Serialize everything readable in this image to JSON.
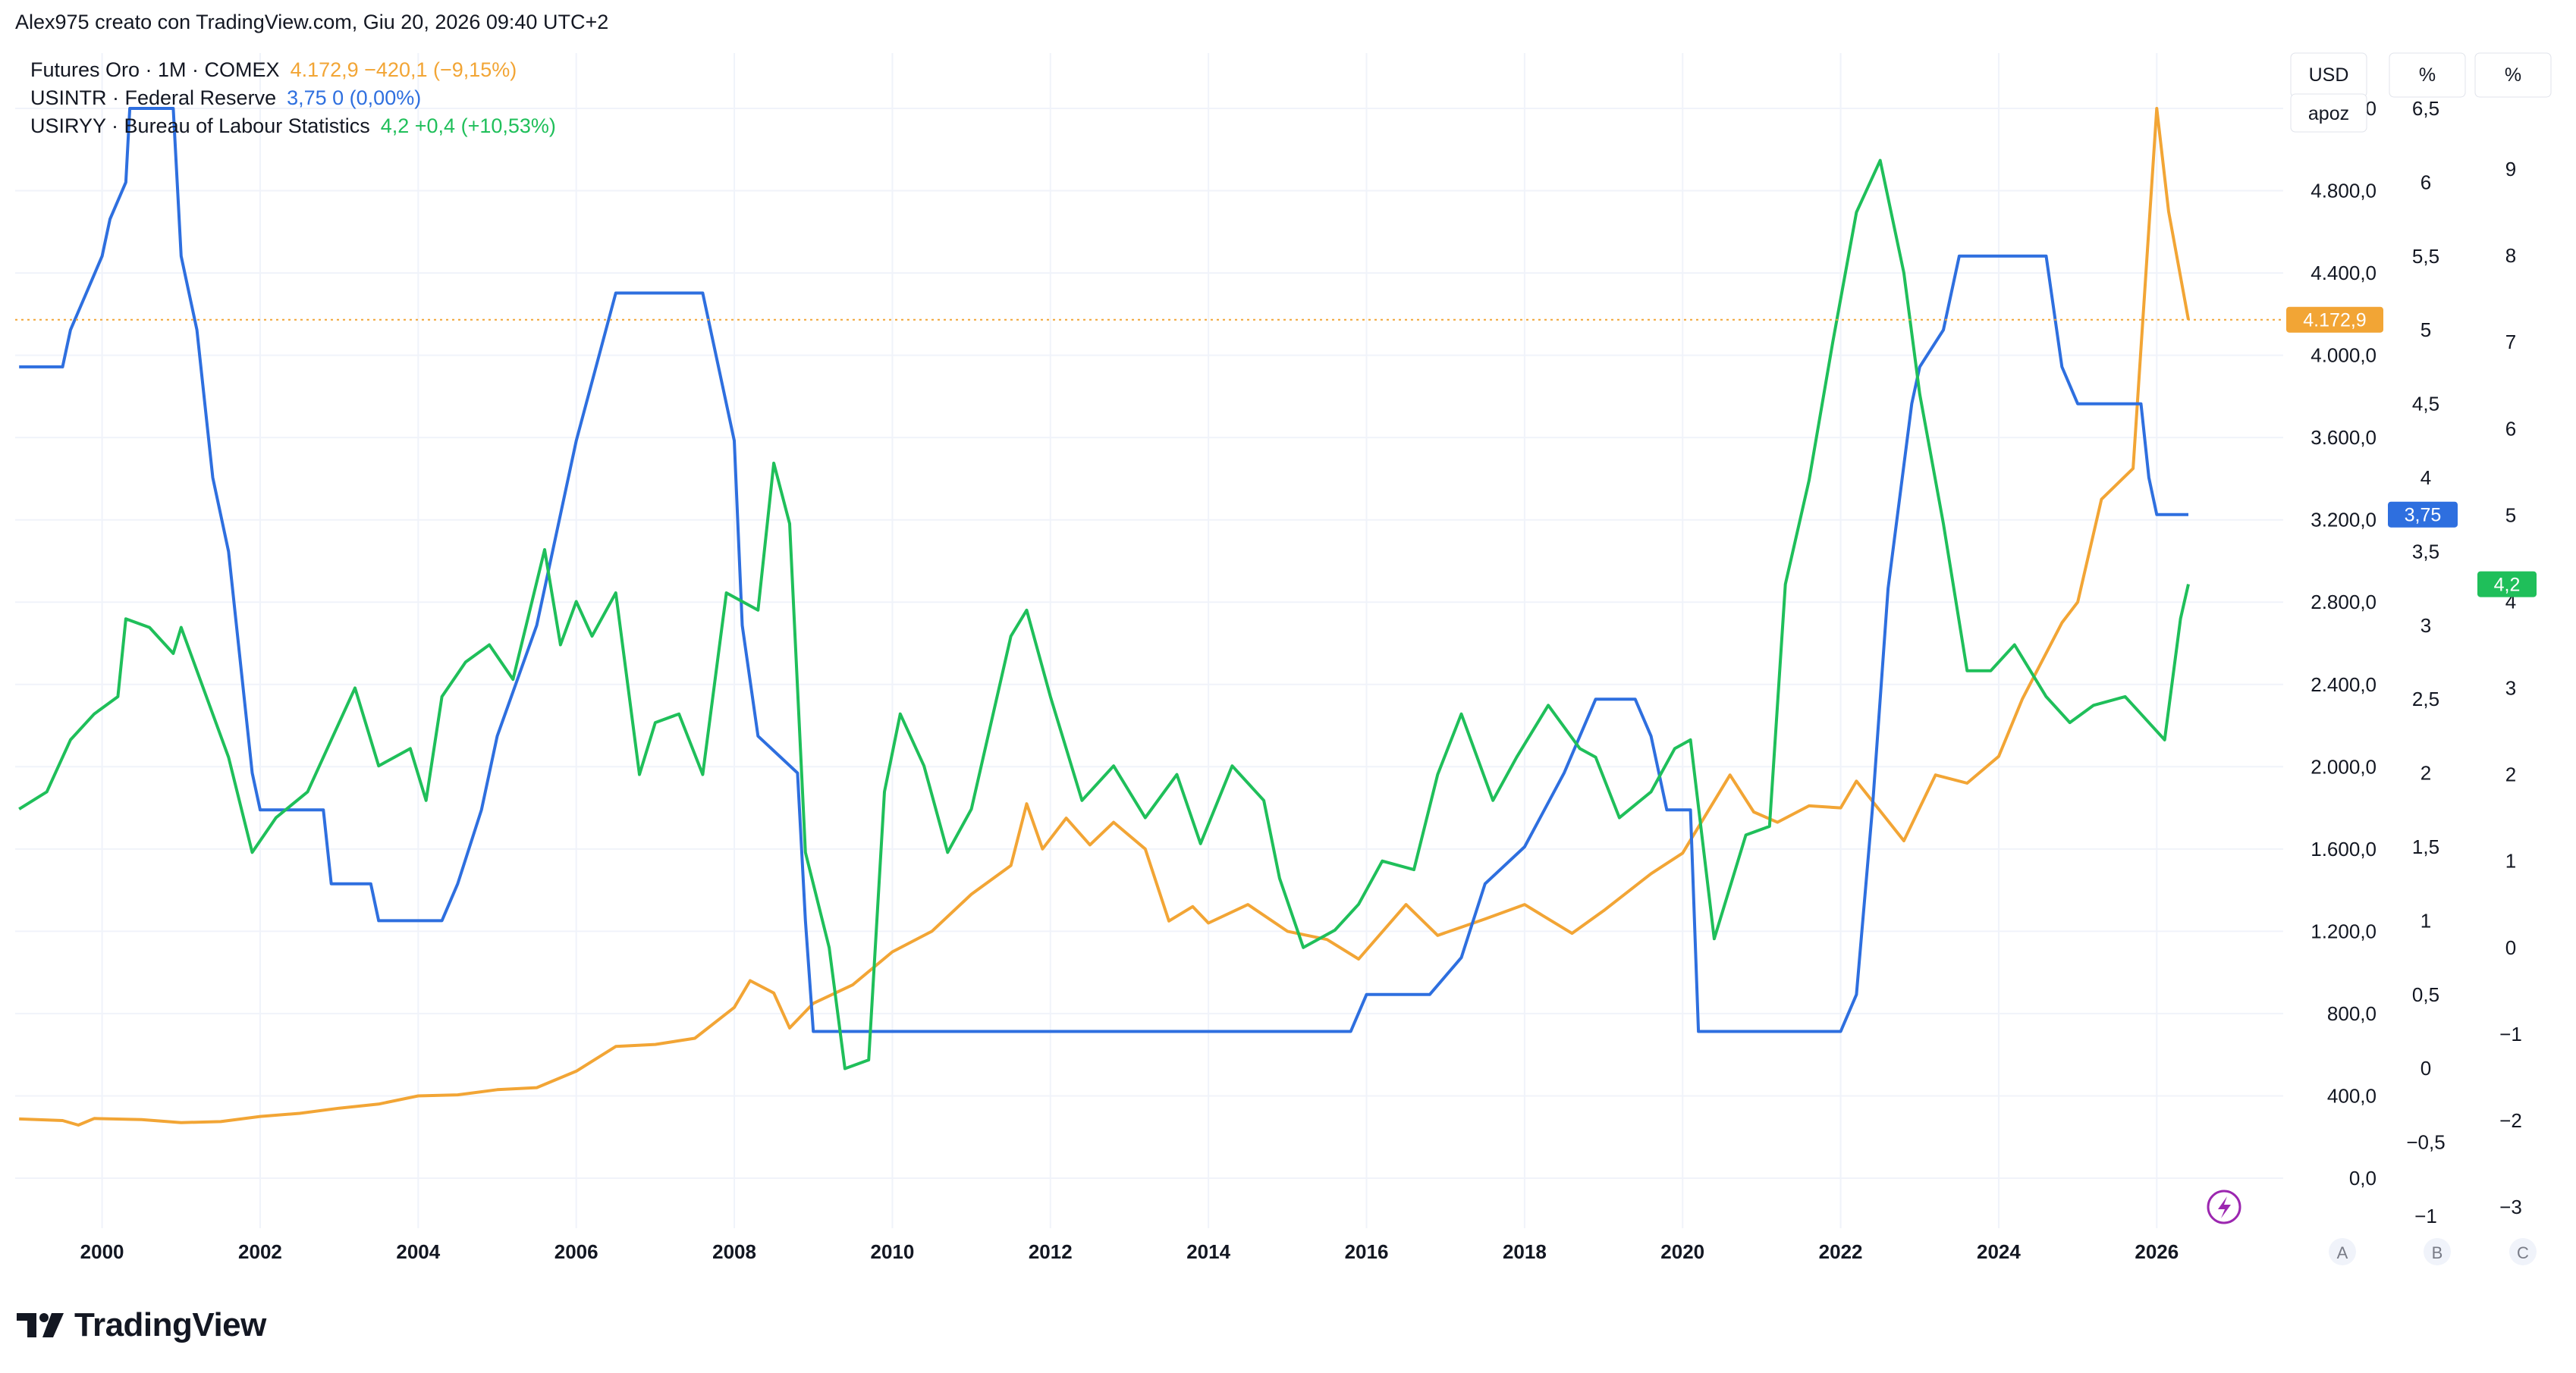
{
  "header": {
    "attribution": "Alex975 creato con TradingView.com, Giu 20, 2026 09:40 UTC+2"
  },
  "legend": [
    {
      "name": "Futures Oro · 1M · COMEX",
      "value": "4.172,9  −420,1 (−9,15%)",
      "color": "#f2a535"
    },
    {
      "name": "USINTR · Federal Reserve",
      "value": "3,75  0 (0,00%)",
      "color": "#2e6fdf"
    },
    {
      "name": "USIRYY · Bureau of Labour Statistics",
      "value": "4,2  +0,4 (+10,53%)",
      "color": "#1fbf5a"
    }
  ],
  "axis_headers": {
    "a_unit": "USD",
    "a_mode": "apoz",
    "b_unit": "%",
    "c_unit": "%"
  },
  "axis_footers": [
    "A",
    "B",
    "C"
  ],
  "brand": "TradingView",
  "colors": {
    "gold": "#f2a535",
    "rate": "#2e6fdf",
    "cpi": "#1fbf5a",
    "grid": "#f0f3fa",
    "axis_text": "#131722"
  },
  "chart_data": {
    "type": "line",
    "x_ticks": [
      2000,
      2002,
      2004,
      2006,
      2008,
      2010,
      2012,
      2014,
      2016,
      2018,
      2020,
      2022,
      2024,
      2026
    ],
    "x_range": [
      1998.9,
      2027.6
    ],
    "axes": {
      "A": {
        "ticks": [
          "0,0",
          "400,0",
          "800,0",
          "1.200,0",
          "1.600,0",
          "2.000,0",
          "2.400,0",
          "2.800,0",
          "3.200,0",
          "3.600,0",
          "4.000,0",
          "4.400,0",
          "4.800,0",
          "5.200,0"
        ],
        "range": [
          0,
          5200
        ]
      },
      "B": {
        "ticks": [
          "−1",
          "−0,5",
          "0",
          "0,5",
          "1",
          "1,5",
          "2",
          "2,5",
          "3",
          "3,5",
          "4",
          "4,5",
          "5",
          "5,5",
          "6",
          "6,5"
        ],
        "range": [
          -1,
          6.5
        ]
      },
      "C": {
        "ticks": [
          "−3",
          "−2",
          "−1",
          "0",
          "1",
          "2",
          "3",
          "4",
          "5",
          "6",
          "7",
          "8",
          "9"
        ],
        "range": [
          -3,
          9
        ]
      }
    },
    "last_labels": {
      "gold": "4.172,9",
      "rate": "3,75",
      "cpi": "4,2"
    },
    "series": [
      {
        "name": "Futures Oro · 1M · COMEX",
        "axis": "A",
        "points": [
          [
            1998.95,
            288
          ],
          [
            1999.5,
            280
          ],
          [
            1999.7,
            258
          ],
          [
            1999.9,
            290
          ],
          [
            2000.5,
            285
          ],
          [
            2001.0,
            270
          ],
          [
            2001.5,
            275
          ],
          [
            2002.0,
            300
          ],
          [
            2002.5,
            315
          ],
          [
            2003.0,
            340
          ],
          [
            2003.5,
            360
          ],
          [
            2004.0,
            400
          ],
          [
            2004.5,
            405
          ],
          [
            2005.0,
            430
          ],
          [
            2005.5,
            440
          ],
          [
            2006.0,
            520
          ],
          [
            2006.5,
            640
          ],
          [
            2007.0,
            650
          ],
          [
            2007.5,
            680
          ],
          [
            2008.0,
            830
          ],
          [
            2008.2,
            960
          ],
          [
            2008.5,
            900
          ],
          [
            2008.7,
            730
          ],
          [
            2009.0,
            850
          ],
          [
            2009.5,
            940
          ],
          [
            2010.0,
            1100
          ],
          [
            2010.5,
            1200
          ],
          [
            2011.0,
            1380
          ],
          [
            2011.5,
            1520
          ],
          [
            2011.7,
            1820
          ],
          [
            2011.9,
            1600
          ],
          [
            2012.2,
            1750
          ],
          [
            2012.5,
            1620
          ],
          [
            2012.8,
            1730
          ],
          [
            2013.2,
            1600
          ],
          [
            2013.5,
            1250
          ],
          [
            2013.8,
            1320
          ],
          [
            2014.0,
            1240
          ],
          [
            2014.5,
            1330
          ],
          [
            2015.0,
            1200
          ],
          [
            2015.5,
            1160
          ],
          [
            2015.9,
            1065
          ],
          [
            2016.5,
            1330
          ],
          [
            2016.9,
            1180
          ],
          [
            2017.5,
            1260
          ],
          [
            2018.0,
            1330
          ],
          [
            2018.6,
            1190
          ],
          [
            2019.0,
            1300
          ],
          [
            2019.6,
            1480
          ],
          [
            2020.0,
            1580
          ],
          [
            2020.6,
            1960
          ],
          [
            2020.9,
            1780
          ],
          [
            2021.2,
            1730
          ],
          [
            2021.6,
            1810
          ],
          [
            2022.0,
            1800
          ],
          [
            2022.2,
            1930
          ],
          [
            2022.8,
            1640
          ],
          [
            2023.2,
            1960
          ],
          [
            2023.6,
            1920
          ],
          [
            2024.0,
            2050
          ],
          [
            2024.3,
            2330
          ],
          [
            2024.8,
            2700
          ],
          [
            2025.0,
            2800
          ],
          [
            2025.3,
            3300
          ],
          [
            2025.7,
            3450
          ],
          [
            2026.0,
            5200
          ],
          [
            2026.15,
            4700
          ],
          [
            2026.4,
            4172.9
          ]
        ]
      },
      {
        "name": "USINTR · Federal Reserve",
        "axis": "B",
        "points": [
          [
            1998.95,
            4.75
          ],
          [
            1999.5,
            4.75
          ],
          [
            1999.6,
            5.0
          ],
          [
            1999.8,
            5.25
          ],
          [
            2000.0,
            5.5
          ],
          [
            2000.1,
            5.75
          ],
          [
            2000.3,
            6.0
          ],
          [
            2000.35,
            6.5
          ],
          [
            2000.9,
            6.5
          ],
          [
            2001.0,
            5.5
          ],
          [
            2001.2,
            5.0
          ],
          [
            2001.4,
            4.0
          ],
          [
            2001.6,
            3.5
          ],
          [
            2001.8,
            2.5
          ],
          [
            2001.9,
            2.0
          ],
          [
            2002.0,
            1.75
          ],
          [
            2002.8,
            1.75
          ],
          [
            2002.9,
            1.25
          ],
          [
            2003.4,
            1.25
          ],
          [
            2003.5,
            1.0
          ],
          [
            2004.3,
            1.0
          ],
          [
            2004.5,
            1.25
          ],
          [
            2004.8,
            1.75
          ],
          [
            2005.0,
            2.25
          ],
          [
            2005.5,
            3.0
          ],
          [
            2006.0,
            4.25
          ],
          [
            2006.5,
            5.25
          ],
          [
            2007.6,
            5.25
          ],
          [
            2007.8,
            4.75
          ],
          [
            2008.0,
            4.25
          ],
          [
            2008.1,
            3.0
          ],
          [
            2008.3,
            2.25
          ],
          [
            2008.8,
            2.0
          ],
          [
            2008.9,
            1.0
          ],
          [
            2009.0,
            0.25
          ],
          [
            2015.8,
            0.25
          ],
          [
            2016.0,
            0.5
          ],
          [
            2016.8,
            0.5
          ],
          [
            2017.2,
            0.75
          ],
          [
            2017.5,
            1.25
          ],
          [
            2018.0,
            1.5
          ],
          [
            2018.5,
            2.0
          ],
          [
            2018.9,
            2.5
          ],
          [
            2019.4,
            2.5
          ],
          [
            2019.6,
            2.25
          ],
          [
            2019.8,
            1.75
          ],
          [
            2020.1,
            1.75
          ],
          [
            2020.2,
            0.25
          ],
          [
            2022.0,
            0.25
          ],
          [
            2022.2,
            0.5
          ],
          [
            2022.4,
            1.75
          ],
          [
            2022.6,
            3.25
          ],
          [
            2022.9,
            4.5
          ],
          [
            2023.0,
            4.75
          ],
          [
            2023.3,
            5.0
          ],
          [
            2023.5,
            5.5
          ],
          [
            2024.6,
            5.5
          ],
          [
            2024.8,
            4.75
          ],
          [
            2025.0,
            4.5
          ],
          [
            2025.8,
            4.5
          ],
          [
            2025.9,
            4.0
          ],
          [
            2026.0,
            3.75
          ],
          [
            2026.4,
            3.75
          ]
        ]
      },
      {
        "name": "USIRYY · Bureau of Labour Statistics",
        "axis": "C",
        "points": [
          [
            1998.95,
            1.6
          ],
          [
            1999.3,
            1.8
          ],
          [
            1999.6,
            2.4
          ],
          [
            1999.9,
            2.7
          ],
          [
            2000.2,
            2.9
          ],
          [
            2000.3,
            3.8
          ],
          [
            2000.6,
            3.7
          ],
          [
            2000.9,
            3.4
          ],
          [
            2001.0,
            3.7
          ],
          [
            2001.2,
            3.2
          ],
          [
            2001.6,
            2.2
          ],
          [
            2001.9,
            1.1
          ],
          [
            2002.2,
            1.5
          ],
          [
            2002.6,
            1.8
          ],
          [
            2002.9,
            2.4
          ],
          [
            2003.2,
            3.0
          ],
          [
            2003.5,
            2.1
          ],
          [
            2003.9,
            2.3
          ],
          [
            2004.1,
            1.7
          ],
          [
            2004.3,
            2.9
          ],
          [
            2004.6,
            3.3
          ],
          [
            2004.9,
            3.5
          ],
          [
            2005.2,
            3.1
          ],
          [
            2005.6,
            4.6
          ],
          [
            2005.8,
            3.5
          ],
          [
            2006.0,
            4.0
          ],
          [
            2006.2,
            3.6
          ],
          [
            2006.5,
            4.1
          ],
          [
            2006.8,
            2.0
          ],
          [
            2007.0,
            2.6
          ],
          [
            2007.3,
            2.7
          ],
          [
            2007.6,
            2.0
          ],
          [
            2007.9,
            4.1
          ],
          [
            2008.3,
            3.9
          ],
          [
            2008.5,
            5.6
          ],
          [
            2008.7,
            4.9
          ],
          [
            2008.9,
            1.1
          ],
          [
            2009.2,
            0.0
          ],
          [
            2009.4,
            -1.4
          ],
          [
            2009.7,
            -1.3
          ],
          [
            2009.9,
            1.8
          ],
          [
            2010.1,
            2.7
          ],
          [
            2010.4,
            2.1
          ],
          [
            2010.7,
            1.1
          ],
          [
            2011.0,
            1.6
          ],
          [
            2011.5,
            3.6
          ],
          [
            2011.7,
            3.9
          ],
          [
            2012.0,
            2.9
          ],
          [
            2012.4,
            1.7
          ],
          [
            2012.8,
            2.1
          ],
          [
            2013.2,
            1.5
          ],
          [
            2013.6,
            2.0
          ],
          [
            2013.9,
            1.2
          ],
          [
            2014.3,
            2.1
          ],
          [
            2014.7,
            1.7
          ],
          [
            2014.9,
            0.8
          ],
          [
            2015.2,
            0.0
          ],
          [
            2015.6,
            0.2
          ],
          [
            2015.9,
            0.5
          ],
          [
            2016.2,
            1.0
          ],
          [
            2016.6,
            0.9
          ],
          [
            2016.9,
            2.0
          ],
          [
            2017.2,
            2.7
          ],
          [
            2017.6,
            1.7
          ],
          [
            2017.9,
            2.2
          ],
          [
            2018.3,
            2.8
          ],
          [
            2018.7,
            2.3
          ],
          [
            2018.9,
            2.2
          ],
          [
            2019.2,
            1.5
          ],
          [
            2019.6,
            1.8
          ],
          [
            2019.9,
            2.3
          ],
          [
            2020.1,
            2.4
          ],
          [
            2020.4,
            0.1
          ],
          [
            2020.8,
            1.3
          ],
          [
            2021.1,
            1.4
          ],
          [
            2021.3,
            4.2
          ],
          [
            2021.6,
            5.4
          ],
          [
            2021.9,
            7.0
          ],
          [
            2022.2,
            8.5
          ],
          [
            2022.5,
            9.1
          ],
          [
            2022.8,
            7.8
          ],
          [
            2023.0,
            6.4
          ],
          [
            2023.3,
            4.9
          ],
          [
            2023.6,
            3.2
          ],
          [
            2023.9,
            3.2
          ],
          [
            2024.2,
            3.5
          ],
          [
            2024.6,
            2.9
          ],
          [
            2024.9,
            2.6
          ],
          [
            2025.2,
            2.8
          ],
          [
            2025.6,
            2.9
          ],
          [
            2025.8,
            2.7
          ],
          [
            2026.1,
            2.4
          ],
          [
            2026.3,
            3.8
          ],
          [
            2026.4,
            4.2
          ]
        ]
      }
    ]
  }
}
